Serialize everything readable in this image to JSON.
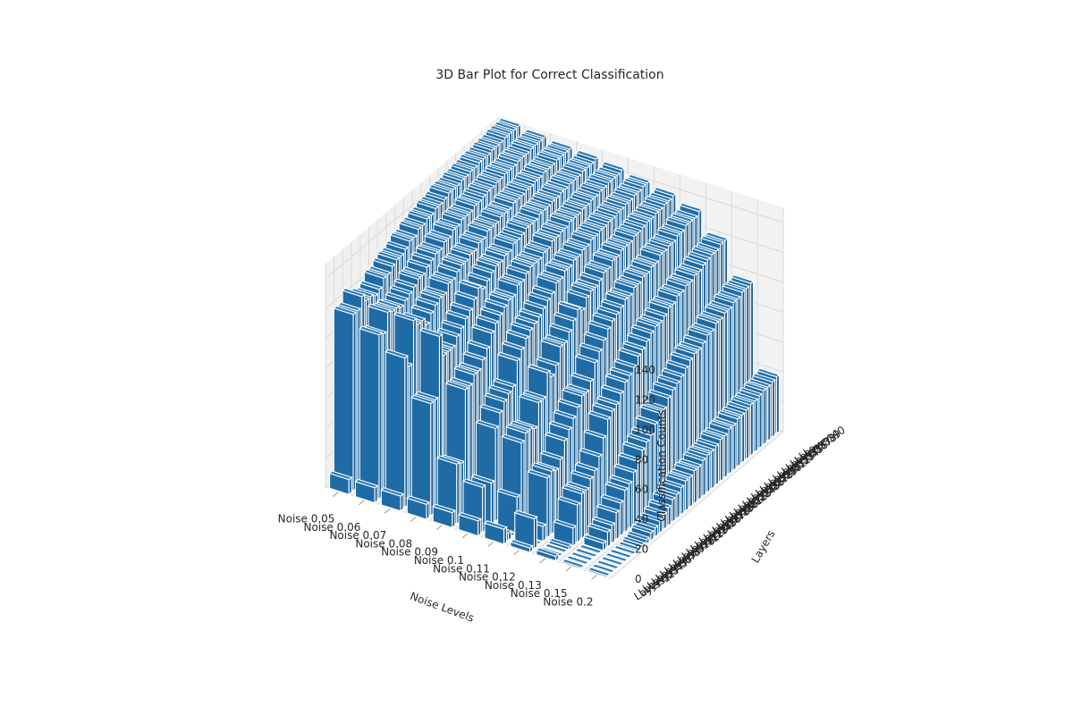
{
  "chart_data": {
    "type": "bar3d",
    "title": "3D Bar Plot for Correct Classification",
    "xlabel": "Noise Levels",
    "ylabel": "Layers",
    "zlabel": "Classification Counts",
    "x_categories": [
      "Noise 0.05",
      "Noise 0.06",
      "Noise 0.07",
      "Noise 0.08",
      "Noise 0.09",
      "Noise 0.1",
      "Noise 0.11",
      "Noise 0.12",
      "Noise 0.13",
      "Noise 0.15",
      "Noise 0.2"
    ],
    "y_categories": [
      "Layer 1",
      "Layer 2",
      "Layer 3",
      "Layer 4",
      "Layer 5",
      "Layer 6",
      "Layer 7",
      "Layer 8",
      "Layer 9",
      "Layer 10",
      "Layer 11",
      "Layer 12",
      "Layer 13",
      "Layer 14",
      "Layer 15",
      "Layer 16",
      "Layer 17",
      "Layer 18",
      "Layer 19",
      "Layer 20",
      "Layer 21",
      "Layer 22",
      "Layer 23",
      "Layer 24",
      "Layer 25",
      "Layer 26",
      "Layer 27",
      "Layer 28",
      "Layer 29",
      "Layer 30",
      "Layer 31",
      "Layer 32",
      "Layer 33",
      "Layer 34",
      "Layer 35",
      "Layer 36",
      "Layer 37",
      "Layer 38",
      "Layer 39",
      "Layer 40"
    ],
    "zticks": [
      0,
      20,
      40,
      60,
      80,
      100,
      120,
      140
    ],
    "zlim": [
      0,
      150
    ],
    "bar_color": "#1f6ba5",
    "edge_color": "#ffffff",
    "grid": true,
    "values": [
      [
        10,
        10,
        10,
        10,
        10,
        10,
        10,
        3,
        3,
        1,
        1
      ],
      [
        118,
        110,
        100,
        75,
        40,
        30,
        5,
        20,
        0,
        0,
        0
      ],
      [
        118,
        108,
        92,
        75,
        38,
        0,
        0,
        0,
        0,
        0,
        0
      ],
      [
        125,
        120,
        120,
        115,
        85,
        28,
        24,
        10,
        2,
        0,
        0
      ],
      [
        120,
        118,
        115,
        100,
        85,
        62,
        58,
        40,
        12,
        0,
        0
      ],
      [
        120,
        118,
        115,
        100,
        90,
        70,
        62,
        42,
        25,
        5,
        0
      ],
      [
        118,
        116,
        110,
        100,
        90,
        75,
        62,
        40,
        30,
        10,
        0
      ],
      [
        120,
        118,
        115,
        105,
        95,
        78,
        60,
        45,
        30,
        12,
        1
      ],
      [
        125,
        120,
        118,
        108,
        100,
        80,
        75,
        55,
        35,
        18,
        2
      ],
      [
        125,
        122,
        120,
        112,
        108,
        95,
        75,
        60,
        38,
        22,
        3
      ],
      [
        128,
        125,
        120,
        115,
        112,
        100,
        90,
        65,
        45,
        28,
        5
      ],
      [
        130,
        125,
        125,
        120,
        115,
        105,
        85,
        70,
        55,
        30,
        6
      ],
      [
        130,
        128,
        125,
        125,
        118,
        108,
        90,
        75,
        65,
        35,
        8
      ],
      [
        132,
        130,
        128,
        122,
        120,
        110,
        100,
        75,
        68,
        40,
        10
      ],
      [
        135,
        132,
        130,
        125,
        120,
        112,
        100,
        80,
        70,
        45,
        12
      ],
      [
        135,
        132,
        130,
        128,
        125,
        115,
        105,
        90,
        75,
        48,
        15
      ],
      [
        138,
        135,
        132,
        130,
        125,
        118,
        110,
        95,
        80,
        50,
        16
      ],
      [
        138,
        135,
        132,
        130,
        128,
        120,
        115,
        100,
        82,
        55,
        18
      ],
      [
        140,
        138,
        135,
        132,
        130,
        125,
        112,
        105,
        85,
        60,
        20
      ],
      [
        140,
        138,
        135,
        132,
        130,
        125,
        118,
        108,
        90,
        60,
        20
      ],
      [
        142,
        140,
        138,
        135,
        130,
        128,
        120,
        110,
        92,
        65,
        22
      ],
      [
        142,
        140,
        138,
        135,
        132,
        128,
        120,
        112,
        95,
        68,
        22
      ],
      [
        143,
        140,
        138,
        136,
        132,
        130,
        122,
        115,
        98,
        70,
        24
      ],
      [
        145,
        142,
        140,
        138,
        135,
        130,
        125,
        115,
        100,
        72,
        25
      ],
      [
        145,
        142,
        140,
        138,
        135,
        132,
        125,
        118,
        100,
        75,
        25
      ],
      [
        145,
        143,
        140,
        138,
        136,
        132,
        128,
        118,
        102,
        78,
        26
      ],
      [
        146,
        144,
        142,
        140,
        136,
        134,
        128,
        120,
        105,
        80,
        28
      ],
      [
        146,
        144,
        142,
        140,
        138,
        134,
        130,
        120,
        105,
        80,
        28
      ],
      [
        147,
        145,
        142,
        140,
        138,
        135,
        130,
        122,
        108,
        82,
        30
      ],
      [
        147,
        145,
        143,
        141,
        138,
        135,
        130,
        122,
        108,
        85,
        30
      ],
      [
        148,
        146,
        143,
        141,
        139,
        136,
        132,
        125,
        110,
        85,
        32
      ],
      [
        148,
        146,
        144,
        142,
        139,
        136,
        132,
        125,
        110,
        88,
        32
      ],
      [
        148,
        146,
        144,
        142,
        140,
        137,
        133,
        126,
        112,
        88,
        33
      ],
      [
        149,
        147,
        145,
        143,
        140,
        137,
        134,
        126,
        112,
        90,
        34
      ],
      [
        149,
        147,
        145,
        143,
        141,
        138,
        134,
        128,
        114,
        90,
        34
      ],
      [
        149,
        147,
        145,
        143,
        141,
        138,
        135,
        128,
        115,
        92,
        35
      ],
      [
        150,
        148,
        146,
        144,
        142,
        139,
        135,
        130,
        116,
        92,
        36
      ],
      [
        150,
        148,
        146,
        144,
        142,
        139,
        136,
        130,
        116,
        94,
        36
      ],
      [
        150,
        148,
        146,
        144,
        142,
        140,
        136,
        130,
        118,
        94,
        37
      ],
      [
        150,
        148,
        146,
        145,
        143,
        140,
        137,
        132,
        118,
        95,
        38
      ]
    ]
  }
}
